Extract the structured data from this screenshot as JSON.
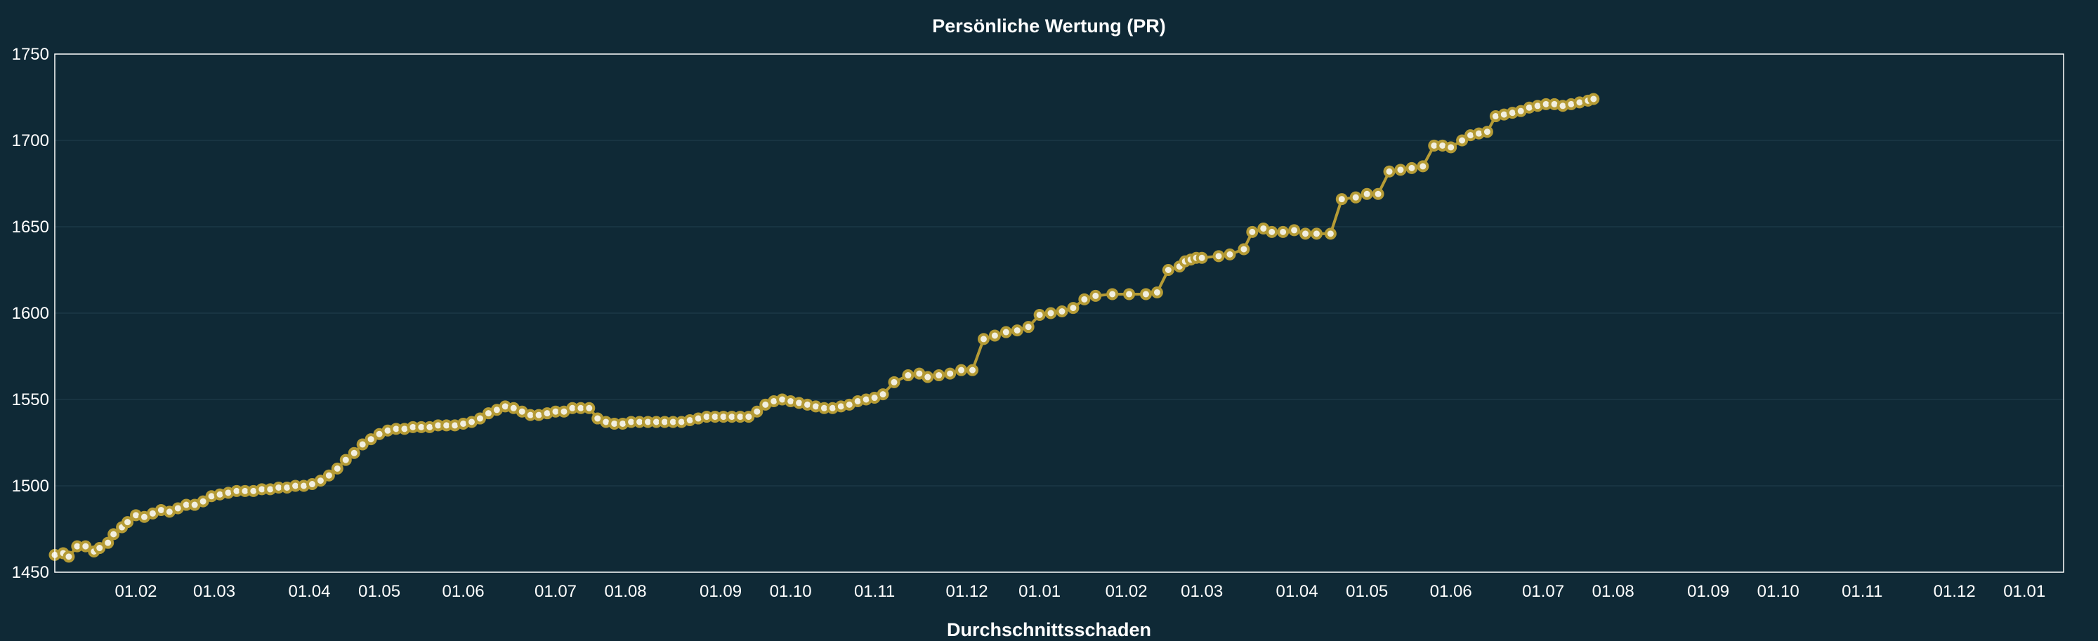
{
  "page": {
    "next_chart_title": "Durchschnittsschaden"
  },
  "chart_data": {
    "type": "line",
    "title": "Persönliche Wertung (PR)",
    "xlabel": "",
    "ylabel": "",
    "ylim": [
      1450,
      1750
    ],
    "yticks": [
      1450,
      1500,
      1550,
      1600,
      1650,
      1700,
      1750
    ],
    "xlim": [
      0,
      718
    ],
    "xticks": [
      {
        "x": 29,
        "label": "01.02"
      },
      {
        "x": 57,
        "label": "01.03"
      },
      {
        "x": 91,
        "label": "01.04"
      },
      {
        "x": 116,
        "label": "01.05"
      },
      {
        "x": 146,
        "label": "01.06"
      },
      {
        "x": 179,
        "label": "01.07"
      },
      {
        "x": 204,
        "label": "01.08"
      },
      {
        "x": 238,
        "label": "01.09"
      },
      {
        "x": 263,
        "label": "01.10"
      },
      {
        "x": 293,
        "label": "01.11"
      },
      {
        "x": 326,
        "label": "01.12"
      },
      {
        "x": 352,
        "label": "01.01"
      },
      {
        "x": 383,
        "label": "01.02"
      },
      {
        "x": 410,
        "label": "01.03"
      },
      {
        "x": 444,
        "label": "01.04"
      },
      {
        "x": 469,
        "label": "01.05"
      },
      {
        "x": 499,
        "label": "01.06"
      },
      {
        "x": 532,
        "label": "01.07"
      },
      {
        "x": 557,
        "label": "01.08"
      },
      {
        "x": 591,
        "label": "01.09"
      },
      {
        "x": 616,
        "label": "01.10"
      },
      {
        "x": 646,
        "label": "01.11"
      },
      {
        "x": 679,
        "label": "01.12"
      },
      {
        "x": 704,
        "label": "01.01"
      }
    ],
    "grid": true,
    "legend": "none",
    "colors": {
      "line": "#b59b35",
      "marker_fill": "#f2efe0",
      "background": "#0f2936",
      "plot_border": "#ffffff",
      "grid": "#1c3946"
    },
    "series": [
      {
        "values": [
          [
            0,
            1460
          ],
          [
            3,
            1461
          ],
          [
            5,
            1459
          ],
          [
            8,
            1465
          ],
          [
            11,
            1465
          ],
          [
            14,
            1462
          ],
          [
            16,
            1464
          ],
          [
            19,
            1467
          ],
          [
            21,
            1472
          ],
          [
            24,
            1476
          ],
          [
            26,
            1479
          ],
          [
            29,
            1483
          ],
          [
            32,
            1482
          ],
          [
            35,
            1484
          ],
          [
            38,
            1486
          ],
          [
            41,
            1485
          ],
          [
            44,
            1487
          ],
          [
            47,
            1489
          ],
          [
            50,
            1489
          ],
          [
            53,
            1491
          ],
          [
            56,
            1494
          ],
          [
            59,
            1495
          ],
          [
            62,
            1496
          ],
          [
            65,
            1497
          ],
          [
            68,
            1497
          ],
          [
            71,
            1497
          ],
          [
            74,
            1498
          ],
          [
            77,
            1498
          ],
          [
            80,
            1499
          ],
          [
            83,
            1499
          ],
          [
            86,
            1500
          ],
          [
            89,
            1500
          ],
          [
            92,
            1501
          ],
          [
            95,
            1503
          ],
          [
            98,
            1506
          ],
          [
            101,
            1510
          ],
          [
            104,
            1515
          ],
          [
            107,
            1519
          ],
          [
            110,
            1524
          ],
          [
            113,
            1527
          ],
          [
            116,
            1530
          ],
          [
            119,
            1532
          ],
          [
            122,
            1533
          ],
          [
            125,
            1533
          ],
          [
            128,
            1534
          ],
          [
            131,
            1534
          ],
          [
            134,
            1534
          ],
          [
            137,
            1535
          ],
          [
            140,
            1535
          ],
          [
            143,
            1535
          ],
          [
            146,
            1536
          ],
          [
            149,
            1537
          ],
          [
            152,
            1539
          ],
          [
            155,
            1542
          ],
          [
            158,
            1544
          ],
          [
            161,
            1546
          ],
          [
            164,
            1545
          ],
          [
            167,
            1543
          ],
          [
            170,
            1541
          ],
          [
            173,
            1541
          ],
          [
            176,
            1542
          ],
          [
            179,
            1543
          ],
          [
            182,
            1543
          ],
          [
            185,
            1545
          ],
          [
            188,
            1545
          ],
          [
            191,
            1545
          ],
          [
            194,
            1539
          ],
          [
            197,
            1537
          ],
          [
            200,
            1536
          ],
          [
            203,
            1536
          ],
          [
            206,
            1537
          ],
          [
            209,
            1537
          ],
          [
            212,
            1537
          ],
          [
            215,
            1537
          ],
          [
            218,
            1537
          ],
          [
            221,
            1537
          ],
          [
            224,
            1537
          ],
          [
            227,
            1538
          ],
          [
            230,
            1539
          ],
          [
            233,
            1540
          ],
          [
            236,
            1540
          ],
          [
            239,
            1540
          ],
          [
            242,
            1540
          ],
          [
            245,
            1540
          ],
          [
            248,
            1540
          ],
          [
            251,
            1543
          ],
          [
            254,
            1547
          ],
          [
            257,
            1549
          ],
          [
            260,
            1550
          ],
          [
            263,
            1549
          ],
          [
            266,
            1548
          ],
          [
            269,
            1547
          ],
          [
            272,
            1546
          ],
          [
            275,
            1545
          ],
          [
            278,
            1545
          ],
          [
            281,
            1546
          ],
          [
            284,
            1547
          ],
          [
            287,
            1549
          ],
          [
            290,
            1550
          ],
          [
            293,
            1551
          ],
          [
            296,
            1553
          ],
          [
            300,
            1560
          ],
          [
            305,
            1564
          ],
          [
            309,
            1565
          ],
          [
            312,
            1563
          ],
          [
            316,
            1564
          ],
          [
            320,
            1565
          ],
          [
            324,
            1567
          ],
          [
            328,
            1567
          ],
          [
            332,
            1585
          ],
          [
            336,
            1587
          ],
          [
            340,
            1589
          ],
          [
            344,
            1590
          ],
          [
            348,
            1592
          ],
          [
            352,
            1599
          ],
          [
            356,
            1600
          ],
          [
            360,
            1601
          ],
          [
            364,
            1603
          ],
          [
            368,
            1608
          ],
          [
            372,
            1610
          ],
          [
            378,
            1611
          ],
          [
            384,
            1611
          ],
          [
            390,
            1611
          ],
          [
            394,
            1612
          ],
          [
            398,
            1625
          ],
          [
            402,
            1627
          ],
          [
            404,
            1630
          ],
          [
            406,
            1631
          ],
          [
            408,
            1632
          ],
          [
            410,
            1632
          ],
          [
            416,
            1633
          ],
          [
            420,
            1634
          ],
          [
            425,
            1637
          ],
          [
            428,
            1647
          ],
          [
            432,
            1649
          ],
          [
            435,
            1647
          ],
          [
            439,
            1647
          ],
          [
            443,
            1648
          ],
          [
            447,
            1646
          ],
          [
            451,
            1646
          ],
          [
            456,
            1646
          ],
          [
            460,
            1666
          ],
          [
            465,
            1667
          ],
          [
            469,
            1669
          ],
          [
            473,
            1669
          ],
          [
            477,
            1682
          ],
          [
            481,
            1683
          ],
          [
            485,
            1684
          ],
          [
            489,
            1685
          ],
          [
            493,
            1697
          ],
          [
            496,
            1697
          ],
          [
            499,
            1696
          ],
          [
            503,
            1700
          ],
          [
            506,
            1703
          ],
          [
            509,
            1704
          ],
          [
            512,
            1705
          ],
          [
            515,
            1714
          ],
          [
            518,
            1715
          ],
          [
            521,
            1716
          ],
          [
            524,
            1717
          ],
          [
            527,
            1719
          ],
          [
            530,
            1720
          ],
          [
            533,
            1721
          ],
          [
            536,
            1721
          ],
          [
            539,
            1720
          ],
          [
            542,
            1721
          ],
          [
            545,
            1722
          ],
          [
            548,
            1723
          ],
          [
            550,
            1724
          ]
        ]
      }
    ]
  }
}
